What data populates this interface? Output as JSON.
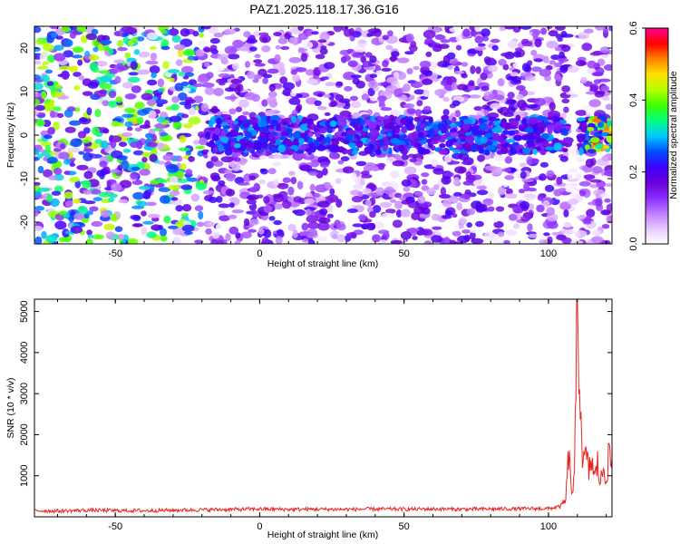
{
  "title": "PAZ1.2025.118.17.36.G16",
  "colors": {
    "snr_line": "#e8251d",
    "axis": "#000000",
    "colormap": [
      "#ffffff",
      "#e6c8ff",
      "#c07bff",
      "#8a2bff",
      "#6a00d8",
      "#3d00ff",
      "#0050ff",
      "#00c8ff",
      "#00ff80",
      "#40ff00",
      "#b4ff00",
      "#ffe000",
      "#ff8000",
      "#ff0000",
      "#ff0090"
    ]
  },
  "chart_data": [
    {
      "type": "heatmap",
      "title": "",
      "xlabel": "Height of straight line (km)",
      "ylabel": "Frequency (Hz)",
      "xlim": [
        -78,
        122
      ],
      "ylim": [
        -25,
        25
      ],
      "xticks": [
        -50,
        0,
        50,
        100
      ],
      "xtick_labels": [
        "-50",
        "0",
        "50",
        "100"
      ],
      "yticks": [
        -20,
        -10,
        0,
        10,
        20
      ],
      "ytick_labels": [
        "-20",
        "-10",
        "0",
        "10",
        "20"
      ],
      "colorbar": {
        "label": "Normalized spectral amplitude",
        "range": [
          0.0,
          0.6
        ],
        "ticks": [
          0.0,
          0.2,
          0.4,
          0.6
        ],
        "tick_labels": [
          "0.0",
          "0.2",
          "0.4",
          "0.6"
        ]
      },
      "description_data": {
        "signal_band_center_hz": 0,
        "signal_band_halfwidth_hz": 4,
        "signal_start_height_km": -18,
        "noise_gap_height_km": 110,
        "peak_amplitude_height_km": [
          113,
          122
        ]
      }
    },
    {
      "type": "line",
      "title": "",
      "xlabel": "Height of straight line (km)",
      "ylabel": "SNR (10 * v/v)",
      "xlim": [
        -78,
        122
      ],
      "ylim": [
        0,
        5300
      ],
      "xticks": [
        -50,
        0,
        50,
        100
      ],
      "xtick_labels": [
        "-50",
        "0",
        "50",
        "100"
      ],
      "yticks": [
        1000,
        2000,
        3000,
        4000,
        5000
      ],
      "ytick_labels": [
        "1000",
        "2000",
        "3000",
        "4000",
        "5000"
      ],
      "series": [
        {
          "x": [
            -78,
            -70,
            -60,
            -50,
            -40,
            -30,
            -20,
            -10,
            0,
            10,
            20,
            30,
            40,
            50,
            60,
            70,
            80,
            90,
            100,
            104,
            106,
            107,
            108,
            109,
            110,
            111,
            112,
            113,
            114,
            115,
            116,
            117,
            118,
            119,
            120,
            121,
            122
          ],
          "y": [
            150,
            140,
            160,
            150,
            150,
            160,
            170,
            180,
            190,
            180,
            185,
            180,
            190,
            185,
            190,
            185,
            190,
            195,
            200,
            250,
            400,
            1550,
            600,
            900,
            5300,
            2900,
            1200,
            1500,
            1100,
            1400,
            900,
            1300,
            800,
            1200,
            1000,
            1500,
            1300
          ]
        }
      ]
    }
  ]
}
